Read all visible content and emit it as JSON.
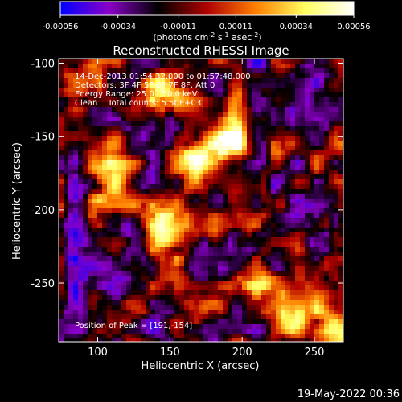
{
  "colorbar": {
    "tick_labels": [
      "-0.00056",
      "-0.00034",
      "-0.00011",
      "0.00011",
      "0.00034",
      "0.00056"
    ],
    "range": [
      -0.00056,
      0.00056
    ],
    "units_parts": [
      "(photons cm",
      "-2",
      " s",
      "-1",
      " asec",
      "-2",
      ")"
    ],
    "colormap": [
      "#0000ff",
      "#8a00c8",
      "#000000",
      "#b00000",
      "#ff8000",
      "#ffff60",
      "#ffffff"
    ]
  },
  "chart_data": {
    "type": "heatmap",
    "title": "Reconstructed RHESSI Image",
    "xlabel": "Heliocentric X (arcsec)",
    "ylabel": "Heliocentric Y (arcsec)",
    "xlim": [
      73,
      270
    ],
    "ylim": [
      -290,
      -97
    ],
    "xticks": [
      100,
      150,
      200,
      250
    ],
    "yticks": [
      -100,
      -150,
      -200,
      -250
    ],
    "annotations": [
      "14-Dec-2013 01:54:32.000 to 01:57:48.000",
      "Detectors: 3F 4F 5F 6F 7F 8F, Att 0",
      "Energy Range: 25.0 - 50.0 keV",
      "Clean    Total counts: 5.50E+03"
    ],
    "peak_label": "Position of Peak = [191,-154]",
    "peak": [
      191,
      -154
    ],
    "bright_regions": [
      {
        "x": 191,
        "y": -154,
        "level": 1.0
      },
      {
        "x": 165,
        "y": -165,
        "level": 0.9
      },
      {
        "x": 140,
        "y": -120,
        "level": 0.7
      },
      {
        "x": 110,
        "y": -180,
        "level": 0.8
      },
      {
        "x": 150,
        "y": -215,
        "level": 0.85
      },
      {
        "x": 260,
        "y": -282,
        "level": 0.9
      },
      {
        "x": 230,
        "y": -275,
        "level": 0.6
      },
      {
        "x": 210,
        "y": -240,
        "level": 0.55
      }
    ],
    "grid": false
  },
  "footer": {
    "timestamp": "19-May-2022 00:36"
  }
}
